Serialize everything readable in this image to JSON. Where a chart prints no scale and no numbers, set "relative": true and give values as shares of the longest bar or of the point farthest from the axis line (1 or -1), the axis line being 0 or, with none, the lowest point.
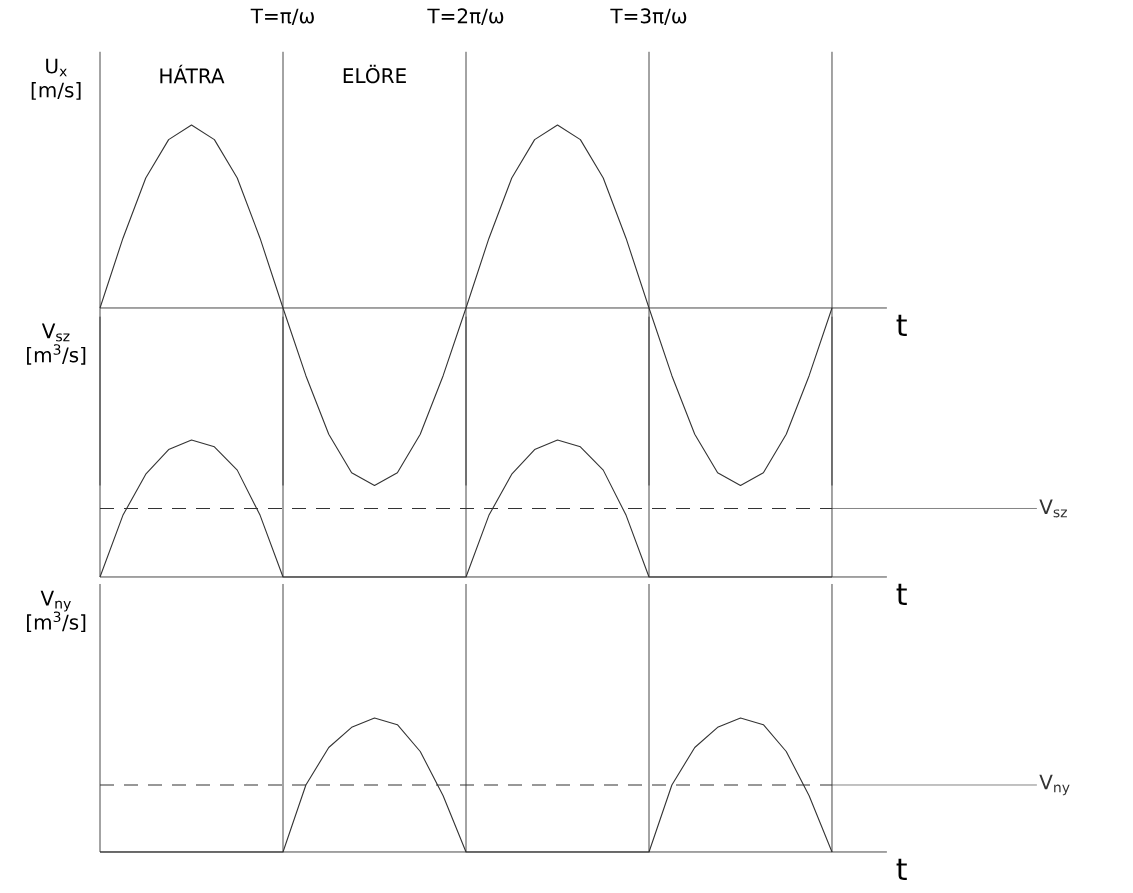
{
  "chart_data": [
    {
      "type": "line",
      "relative": true,
      "ylabel": "U$_{x}$ [m/s]",
      "xlabel": "t",
      "xlim": [
        0,
        4.3
      ],
      "xticks": [
        {
          "value": 1,
          "label": "T=π/ω"
        },
        {
          "value": 2,
          "label": "T=2π/ω"
        },
        {
          "value": 3,
          "label": "T=3π/ω"
        }
      ],
      "tick_labels": "x",
      "annotations": [
        "HÁTRA",
        "ELÖRE"
      ],
      "ref_lines": [
        {
          "axis": "x",
          "value": 1
        },
        {
          "axis": "x",
          "value": 2
        },
        {
          "axis": "x",
          "value": 3
        },
        {
          "axis": "x",
          "value": 4
        }
      ],
      "x": [
        0,
        0.125,
        0.25,
        0.375,
        0.5,
        0.625,
        0.75,
        0.875,
        1,
        1.125,
        1.25,
        1.375,
        1.5,
        1.625,
        1.75,
        1.875,
        2,
        2.125,
        2.25,
        2.375,
        2.5,
        2.625,
        2.75,
        2.875,
        3,
        3.125,
        3.25,
        3.375,
        3.5,
        3.625,
        3.75,
        3.875,
        4
      ],
      "series": [
        {
          "color": "#333333",
          "values": [
            0,
            0.38,
            0.71,
            0.92,
            1,
            0.92,
            0.71,
            0.38,
            0,
            -0.37,
            -0.69,
            -0.9,
            -0.97,
            -0.9,
            -0.69,
            -0.37,
            0,
            0.38,
            0.71,
            0.92,
            1,
            0.92,
            0.71,
            0.38,
            0,
            -0.37,
            -0.69,
            -0.9,
            -0.97,
            -0.9,
            -0.69,
            -0.37,
            0
          ]
        }
      ]
    },
    {
      "type": "line",
      "relative": true,
      "ylabel": "V$_{sz}$ [m$^{3}$/s]",
      "xlabel": "t",
      "xlim": [
        0,
        4.3
      ],
      "tick_labels": false,
      "ref_lines": [
        {
          "axis": "x",
          "value": 1
        },
        {
          "axis": "x",
          "value": 2
        },
        {
          "axis": "x",
          "value": 3
        },
        {
          "axis": "x",
          "value": 4
        },
        {
          "axis": "y",
          "value": 0.5,
          "label": "V$_{sz}$",
          "line_style": "dashed"
        }
      ],
      "x": [
        0,
        0.125,
        0.25,
        0.375,
        0.5,
        0.625,
        0.75,
        0.875,
        1,
        1.125,
        1.25,
        1.375,
        1.5,
        1.625,
        1.75,
        1.875,
        2,
        2.125,
        2.25,
        2.375,
        2.5,
        2.625,
        2.75,
        2.875,
        3,
        3.125,
        3.25,
        3.375,
        3.5,
        3.625,
        3.75,
        3.875,
        4
      ],
      "series": [
        {
          "color": "#333333",
          "values": [
            0,
            0.45,
            0.75,
            0.93,
            1,
            0.95,
            0.78,
            0.45,
            0,
            0,
            0,
            0,
            0,
            0,
            0,
            0,
            0,
            0.45,
            0.75,
            0.93,
            1,
            0.95,
            0.78,
            0.45,
            0,
            0,
            0,
            0,
            0,
            0,
            0,
            0,
            0
          ]
        }
      ]
    },
    {
      "type": "line",
      "relative": true,
      "ylabel": "V$_{ny}$ [m$^{3}$/s]",
      "xlabel": "t",
      "xlim": [
        0,
        4.3
      ],
      "tick_labels": false,
      "ref_lines": [
        {
          "axis": "x",
          "value": 1
        },
        {
          "axis": "x",
          "value": 2
        },
        {
          "axis": "x",
          "value": 3
        },
        {
          "axis": "x",
          "value": 4
        },
        {
          "axis": "y",
          "value": 0.5,
          "label": "V$_{ny}$",
          "line_style": "dashed"
        }
      ],
      "x": [
        0,
        0.125,
        0.25,
        0.375,
        0.5,
        0.625,
        0.75,
        0.875,
        1,
        1.125,
        1.25,
        1.375,
        1.5,
        1.625,
        1.75,
        1.875,
        2,
        2.125,
        2.25,
        2.375,
        2.5,
        2.625,
        2.75,
        2.875,
        3,
        3.125,
        3.25,
        3.375,
        3.5,
        3.625,
        3.75,
        3.875,
        4
      ],
      "series": [
        {
          "color": "#333333",
          "values": [
            0,
            0,
            0,
            0,
            0,
            0,
            0,
            0,
            0,
            0.5,
            0.78,
            0.93,
            1,
            0.95,
            0.75,
            0.42,
            0,
            0,
            0,
            0,
            0,
            0,
            0,
            0,
            0,
            0.5,
            0.78,
            0.93,
            1,
            0.95,
            0.75,
            0.42,
            0
          ]
        }
      ]
    }
  ]
}
